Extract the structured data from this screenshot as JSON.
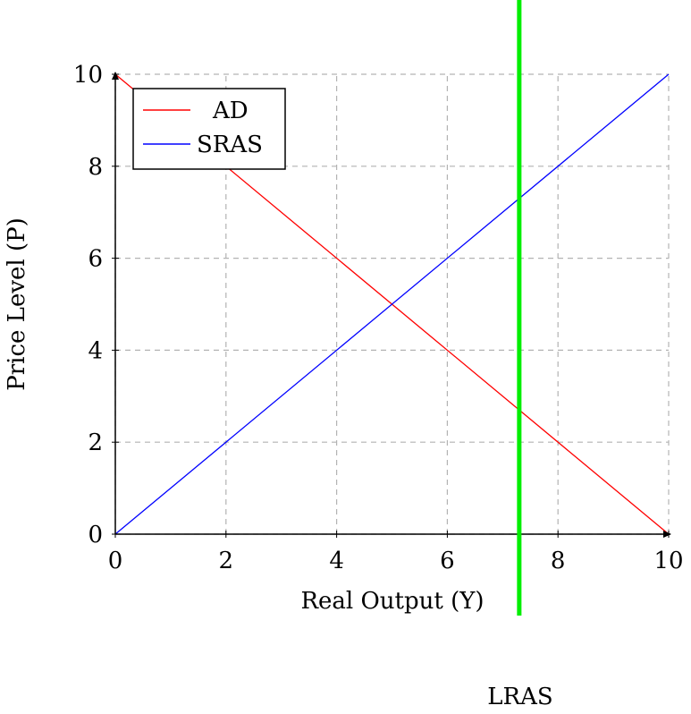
{
  "chart_data": {
    "type": "line",
    "xlabel": "Real Output (Y)",
    "ylabel": "Price Level (P)",
    "xlim": [
      0,
      10
    ],
    "ylim": [
      0,
      10
    ],
    "xticks": [
      0,
      2,
      4,
      6,
      8,
      10
    ],
    "yticks": [
      0,
      2,
      4,
      6,
      8,
      10
    ],
    "grid": true,
    "legend_position": "top-left",
    "series": [
      {
        "name": "AD",
        "color": "#ff0000",
        "x": [
          0,
          10
        ],
        "y": [
          10,
          0
        ]
      },
      {
        "name": "SRAS",
        "color": "#0000ff",
        "x": [
          0,
          10
        ],
        "y": [
          0,
          10
        ]
      }
    ],
    "vertical_line": {
      "label": "LRAS",
      "x": 7.3,
      "color": "#00ee00"
    }
  }
}
